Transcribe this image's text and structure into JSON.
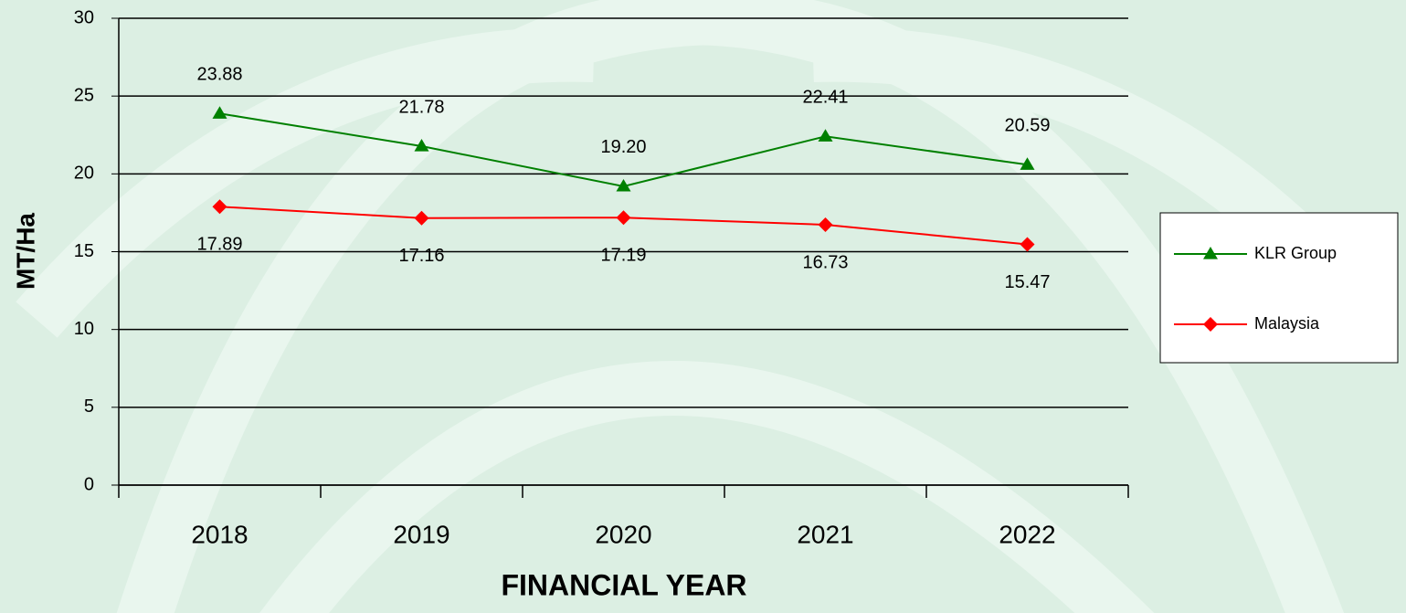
{
  "chart_data": {
    "type": "line",
    "x_label": "FINANCIAL YEAR",
    "y_label": "MT/Ha",
    "categories": [
      "2018",
      "2019",
      "2020",
      "2021",
      "2022"
    ],
    "series": [
      {
        "name": "KLR Group",
        "color": "#008000",
        "marker": "triangle",
        "values": [
          23.88,
          21.78,
          19.2,
          22.41,
          20.59
        ],
        "value_labels": [
          "23.88",
          "21.78",
          "19.20",
          "22.41",
          "20.59"
        ]
      },
      {
        "name": "Malaysia",
        "color": "#ff0000",
        "marker": "diamond",
        "values": [
          17.89,
          17.16,
          17.19,
          16.73,
          15.47
        ],
        "value_labels": [
          "17.89",
          "17.16",
          "17.19",
          "16.73",
          "15.47"
        ]
      }
    ],
    "ylim": [
      0,
      30
    ],
    "yticks": [
      0,
      5,
      10,
      15,
      20,
      25,
      30
    ],
    "grid": true,
    "legend": "right"
  }
}
